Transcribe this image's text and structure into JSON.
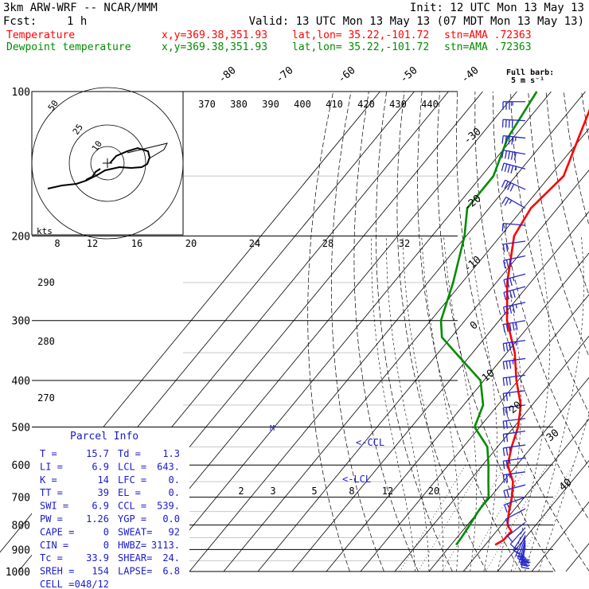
{
  "header": {
    "model": "3km ARW-WRF -- NCAR/MMM",
    "init": "Init: 12 UTC Mon 13 May 13",
    "fcst_label": "Fcst:",
    "fcst_value": "1 h",
    "valid": "Valid: 13 UTC Mon 13 May 13 (07 MDT Mon 13 May 13)",
    "temp_label": "Temperature",
    "dew_label": "Dewpoint temperature",
    "xy": "x,y=369.38,351.93",
    "latlon": "lat,lon= 35.22,-101.72",
    "stn": "stn=AMA .72363"
  },
  "colors": {
    "temperature": "#ff0000",
    "dewpoint": "#008c00",
    "text": "#000000",
    "annotation": "#1a1acd",
    "wind_barb": "#2828c8",
    "isobar": "#000000",
    "helper_isobar": "#c8c8c8"
  },
  "wind_note": {
    "line1": "Full barb:",
    "line2": "5 m s⁻¹"
  },
  "hodograph": {
    "units": "kts",
    "ring_labels": [
      "50",
      "25",
      "10"
    ]
  },
  "parcel_info": {
    "title": "Parcel Info",
    "rows": [
      {
        "l1": "T   =",
        "v1": "15.7",
        "l2": "Td =",
        "v2": "1.3"
      },
      {
        "l1": "LI  =",
        "v1": "6.9",
        "l2": "LCL =",
        "v2": "643."
      },
      {
        "l1": "K   =",
        "v1": "14",
        "l2": "LFC =",
        "v2": "0."
      },
      {
        "l1": "TT  =",
        "v1": "39",
        "l2": "EL  =",
        "v2": "0."
      },
      {
        "l1": "SWI =",
        "v1": "6.9",
        "l2": "CCL =",
        "v2": "539."
      },
      {
        "l1": "PW  =",
        "v1": "1.26",
        "l2": "YGP =",
        "v2": "0.0"
      },
      {
        "l1": "CAPE =",
        "v1": "0",
        "l2": "SWEAT=",
        "v2": "92"
      },
      {
        "l1": "CIN  =",
        "v1": "0",
        "l2": "HWBZ=",
        "v2": "3113."
      },
      {
        "l1": "Tc   =",
        "v1": "33.9",
        "l2": "SHEAR=",
        "v2": "24."
      },
      {
        "l1": "SREH =",
        "v1": "154",
        "l2": "LAPSE=",
        "v2": "6.8"
      },
      {
        "l1": "CELL =",
        "v1": "048/12",
        "l2": "",
        "v2": ""
      }
    ]
  },
  "annotations": {
    "ccl": "<-CCL",
    "lcl": "<-LCL",
    "marker": "M"
  },
  "chart_data": {
    "type": "line",
    "pressure_levels": [
      100,
      200,
      300,
      400,
      500,
      600,
      700,
      800,
      900,
      1000
    ],
    "pressure_tick_labels": [
      "100",
      "200",
      "300",
      "400",
      "500",
      "600",
      "700",
      "800",
      "900",
      "1000"
    ],
    "isotherm_labels": [
      "-80",
      "-70",
      "-60",
      "-50",
      "-40",
      "-30",
      "-20",
      "-10",
      "0",
      "10",
      "20",
      "30",
      "40"
    ],
    "theta_labels": [
      "370",
      "380",
      "390",
      "400",
      "410",
      "420",
      "430",
      "440"
    ],
    "theta_side_labels": [
      "290",
      "280",
      "270"
    ],
    "mixing_ratio_labels": [
      "2",
      "3",
      "5",
      "8",
      "12",
      "20"
    ],
    "wetbulb_labels": [
      "8",
      "12",
      "16",
      "20",
      "24",
      "28",
      "32"
    ],
    "series": [
      {
        "name": "Temperature",
        "points": [
          [
            100,
            -66.6
          ],
          [
            125,
            -60.8
          ],
          [
            150,
            -56
          ],
          [
            175,
            -57.8
          ],
          [
            200,
            -56
          ],
          [
            250,
            -46.8
          ],
          [
            300,
            -37.7
          ],
          [
            350,
            -27.7
          ],
          [
            400,
            -20.5
          ],
          [
            450,
            -13.3
          ],
          [
            500,
            -8.8
          ],
          [
            550,
            -5.9
          ],
          [
            600,
            -2.7
          ],
          [
            650,
            2.9
          ],
          [
            700,
            6.3
          ],
          [
            750,
            8.9
          ],
          [
            800,
            11.7
          ],
          [
            825,
            14.4
          ],
          [
            860,
            14.2
          ],
          [
            880,
            12.9
          ]
        ]
      },
      {
        "name": "Dewpoint temperature",
        "points": [
          [
            100,
            -84.2
          ],
          [
            125,
            -81.5
          ],
          [
            150,
            -76.5
          ],
          [
            175,
            -76.4
          ],
          [
            200,
            -70.5
          ],
          [
            250,
            -62.6
          ],
          [
            300,
            -57
          ],
          [
            325,
            -52.7
          ],
          [
            350,
            -45
          ],
          [
            400,
            -31
          ],
          [
            450,
            -24.3
          ],
          [
            500,
            -21.5
          ],
          [
            550,
            -13
          ],
          [
            600,
            -8.3
          ],
          [
            650,
            -4.3
          ],
          [
            700,
            -0.5
          ],
          [
            750,
            -0.1
          ],
          [
            800,
            0.7
          ],
          [
            850,
            1.3
          ],
          [
            880,
            1.5
          ]
        ]
      }
    ],
    "wind_barbs": [
      {
        "p": 105,
        "dir": 270,
        "spd": 18
      },
      {
        "p": 115,
        "dir": 273,
        "spd": 21
      },
      {
        "p": 125,
        "dir": 276,
        "spd": 23
      },
      {
        "p": 135,
        "dir": 280,
        "spd": 24
      },
      {
        "p": 145,
        "dir": 285,
        "spd": 22
      },
      {
        "p": 160,
        "dir": 295,
        "spd": 19
      },
      {
        "p": 175,
        "dir": 300,
        "spd": 13
      },
      {
        "p": 190,
        "dir": 275,
        "spd": 10
      },
      {
        "p": 205,
        "dir": 262,
        "spd": 11
      },
      {
        "p": 220,
        "dir": 258,
        "spd": 14
      },
      {
        "p": 240,
        "dir": 255,
        "spd": 17
      },
      {
        "p": 255,
        "dir": 255,
        "spd": 19
      },
      {
        "p": 275,
        "dir": 258,
        "spd": 22
      },
      {
        "p": 300,
        "dir": 260,
        "spd": 24
      },
      {
        "p": 330,
        "dir": 262,
        "spd": 22
      },
      {
        "p": 360,
        "dir": 262,
        "spd": 17
      },
      {
        "p": 390,
        "dir": 263,
        "spd": 15
      },
      {
        "p": 420,
        "dir": 263,
        "spd": 13
      },
      {
        "p": 450,
        "dir": 263,
        "spd": 12
      },
      {
        "p": 480,
        "dir": 263,
        "spd": 11
      },
      {
        "p": 510,
        "dir": 262,
        "spd": 11
      },
      {
        "p": 545,
        "dir": 262,
        "spd": 12
      },
      {
        "p": 580,
        "dir": 262,
        "spd": 12
      },
      {
        "p": 620,
        "dir": 262,
        "spd": 13
      },
      {
        "p": 660,
        "dir": 255,
        "spd": 9
      },
      {
        "p": 700,
        "dir": 250,
        "spd": 7
      },
      {
        "p": 740,
        "dir": 242,
        "spd": 5
      },
      {
        "p": 790,
        "dir": 232,
        "spd": 4
      },
      {
        "p": 810,
        "dir": 222,
        "spd": 5
      },
      {
        "p": 825,
        "dir": 213,
        "spd": 7
      },
      {
        "p": 840,
        "dir": 205,
        "spd": 9
      },
      {
        "p": 850,
        "dir": 200,
        "spd": 11
      },
      {
        "p": 862,
        "dir": 196,
        "spd": 13
      },
      {
        "p": 872,
        "dir": 192,
        "spd": 14
      },
      {
        "p": 882,
        "dir": 190,
        "spd": 15
      }
    ]
  }
}
